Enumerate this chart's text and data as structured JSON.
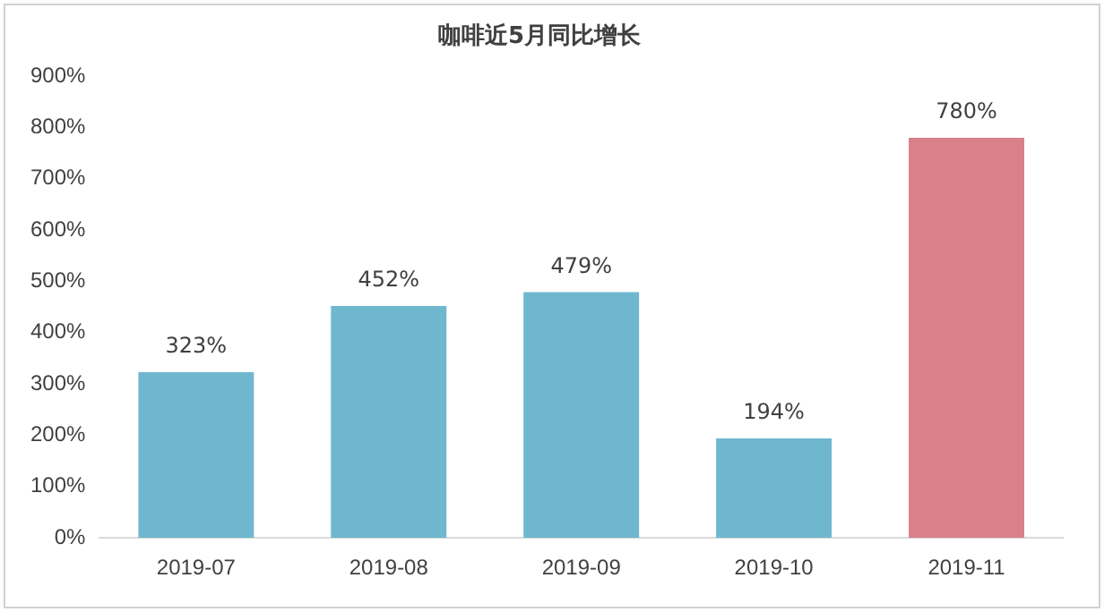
{
  "chart_data": {
    "type": "bar",
    "title": "咖啡近5月同比增长",
    "categories": [
      "2019-07",
      "2019-08",
      "2019-09",
      "2019-10",
      "2019-11"
    ],
    "values": [
      323,
      452,
      479,
      194,
      780
    ],
    "colors": [
      "#6fb7cf",
      "#6fb7cf",
      "#6fb7cf",
      "#6fb7cf",
      "#d9808b"
    ],
    "value_labels": [
      "323%",
      "452%",
      "479%",
      "194%",
      "780%"
    ],
    "ylim": [
      0,
      900
    ],
    "yticks": [
      {
        "value": 0,
        "label": "0%"
      },
      {
        "value": 100,
        "label": "100%"
      },
      {
        "value": 200,
        "label": "200%"
      },
      {
        "value": 300,
        "label": "300%"
      },
      {
        "value": 400,
        "label": "400%"
      },
      {
        "value": 500,
        "label": "500%"
      },
      {
        "value": 600,
        "label": "600%"
      },
      {
        "value": 700,
        "label": "700%"
      },
      {
        "value": 800,
        "label": "800%"
      },
      {
        "value": 900,
        "label": "900%"
      }
    ],
    "grid": false,
    "legend": false
  }
}
